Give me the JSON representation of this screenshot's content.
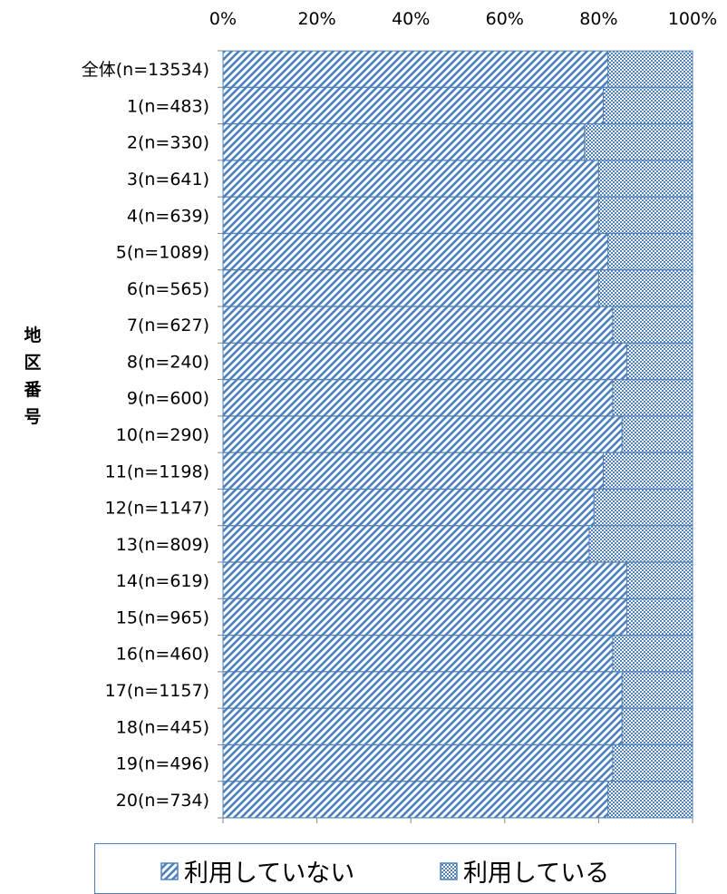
{
  "chart_data": {
    "type": "bar",
    "orientation": "horizontal",
    "stacked": true,
    "percent": true,
    "ylabel": "地区番号",
    "xlim": [
      0,
      100
    ],
    "x_ticks": [
      "0%",
      "20%",
      "40%",
      "60%",
      "80%",
      "100%"
    ],
    "x_tick_values": [
      0,
      20,
      40,
      60,
      80,
      100
    ],
    "categories": [
      "全体(n=13534)",
      "1(n=483)",
      "2(n=330)",
      "3(n=641)",
      "4(n=639)",
      "5(n=1089)",
      "6(n=565)",
      "7(n=627)",
      "8(n=240)",
      "9(n=600)",
      "10(n=290)",
      "11(n=1198)",
      "12(n=1147)",
      "13(n=809)",
      "14(n=619)",
      "15(n=965)",
      "16(n=460)",
      "17(n=1157)",
      "18(n=445)",
      "19(n=496)",
      "20(n=734)"
    ],
    "series": [
      {
        "name": "利用していない",
        "values": [
          82,
          81,
          77,
          80,
          80,
          82,
          80,
          83,
          86,
          83,
          85,
          81,
          79,
          78,
          86,
          86,
          83,
          85,
          85,
          83,
          82
        ]
      },
      {
        "name": "利用している",
        "values": [
          18,
          19,
          23,
          20,
          20,
          18,
          20,
          17,
          14,
          17,
          15,
          19,
          21,
          22,
          14,
          14,
          17,
          15,
          15,
          17,
          18
        ]
      }
    ],
    "legend_position": "bottom",
    "colors": {
      "pattern": "#4f81bd",
      "background": "#ffffff",
      "axis": "#868686"
    }
  }
}
